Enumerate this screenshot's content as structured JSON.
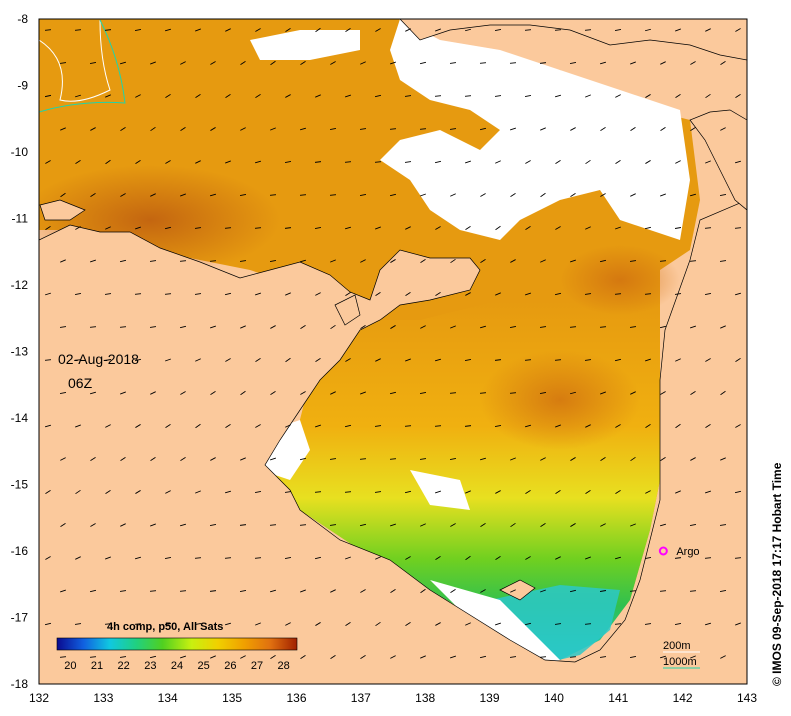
{
  "map": {
    "lon_ticks": [
      "132",
      "133",
      "134",
      "135",
      "136",
      "137",
      "138",
      "139",
      "140",
      "141",
      "142",
      "143"
    ],
    "lat_ticks": [
      "-8",
      "-9",
      "-10",
      "-11",
      "-12",
      "-13",
      "-14",
      "-15",
      "-16",
      "-17",
      "-18"
    ],
    "date": "02-Aug-2018",
    "time": "06Z",
    "colorbar_title": "4h comp, p50, All Sats",
    "colorbar_ticks": [
      "20",
      "21",
      "22",
      "23",
      "24",
      "25",
      "26",
      "27",
      "28"
    ],
    "colorbar_range": [
      19.5,
      28.5
    ],
    "argo_label": "Argo",
    "argo_position": [
      141.7,
      -16.0
    ],
    "contour_200": "200m",
    "contour_1000": "1000m",
    "credit": "© IMOS 09-Sep-2018 17:17 Hobart Time",
    "colors": {
      "land": "#fbc99c",
      "no_data": "#ffffff",
      "argo": "#ff00ff",
      "contour_200": "#ffffff",
      "contour_1000": "#22d3a8"
    }
  }
}
